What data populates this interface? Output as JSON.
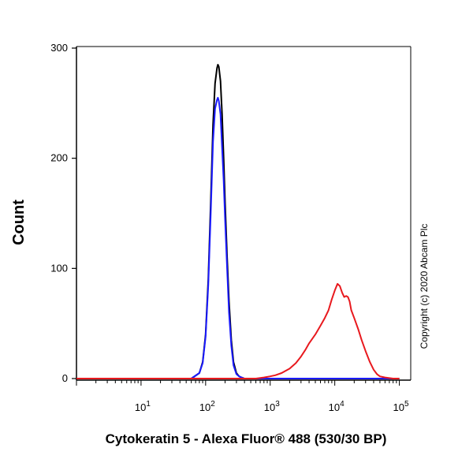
{
  "chart_data": {
    "type": "line",
    "title": "",
    "xlabel": "Cytokeratin 5 - Alexa Fluor® 488 (530/30 BP)",
    "ylabel": "Count",
    "x_scale": "log",
    "xlim": [
      1,
      150000
    ],
    "ylim": [
      0,
      300
    ],
    "x_ticks": [
      {
        "base": "10",
        "exp": "1",
        "value": 10
      },
      {
        "base": "10",
        "exp": "2",
        "value": 100
      },
      {
        "base": "10",
        "exp": "3",
        "value": 1000
      },
      {
        "base": "10",
        "exp": "4",
        "value": 10000
      },
      {
        "base": "10",
        "exp": "5",
        "value": 100000
      }
    ],
    "y_ticks": [
      {
        "label": "0",
        "value": 0
      },
      {
        "label": "100",
        "value": 100
      },
      {
        "label": "200",
        "value": 200
      },
      {
        "label": "300",
        "value": 300
      }
    ],
    "grid": false,
    "legend": "none",
    "annotation": "Copyright (c) 2020 Abcam Plc",
    "series": [
      {
        "color": "#000000",
        "x": [
          1,
          60,
          80,
          90,
          100,
          110,
          120,
          130,
          140,
          150,
          155,
          160,
          170,
          180,
          190,
          200,
          215,
          230,
          250,
          270,
          300,
          330,
          360,
          400,
          500,
          100000
        ],
        "y": [
          0,
          0,
          5,
          15,
          40,
          90,
          160,
          230,
          268,
          282,
          285,
          283,
          270,
          240,
          200,
          160,
          110,
          70,
          35,
          15,
          5,
          2,
          1,
          0,
          0,
          0
        ]
      },
      {
        "color": "#1a1aff",
        "x": [
          1,
          60,
          80,
          90,
          100,
          110,
          120,
          130,
          140,
          150,
          155,
          160,
          170,
          180,
          190,
          200,
          215,
          230,
          250,
          270,
          300,
          330,
          360,
          400,
          500,
          100000
        ],
        "y": [
          0,
          0,
          5,
          14,
          38,
          85,
          150,
          215,
          245,
          253,
          255,
          252,
          240,
          210,
          180,
          145,
          100,
          60,
          30,
          12,
          4,
          2,
          1,
          0,
          0,
          0
        ]
      },
      {
        "color": "#e8191e",
        "x": [
          1,
          600,
          800,
          1000,
          1200,
          1500,
          2000,
          2500,
          3000,
          3500,
          4000,
          5000,
          6000,
          7000,
          8000,
          9000,
          10000,
          11000,
          12000,
          13000,
          14000,
          15000,
          16000,
          17000,
          18000,
          20000,
          23000,
          26000,
          30000,
          35000,
          40000,
          45000,
          50000,
          60000,
          80000,
          100000
        ],
        "y": [
          0,
          0,
          1,
          2,
          3,
          5,
          9,
          14,
          20,
          26,
          32,
          40,
          48,
          55,
          62,
          72,
          80,
          86,
          84,
          78,
          74,
          75,
          74,
          70,
          62,
          55,
          45,
          35,
          25,
          15,
          8,
          4,
          2,
          1,
          0,
          0
        ]
      }
    ]
  }
}
